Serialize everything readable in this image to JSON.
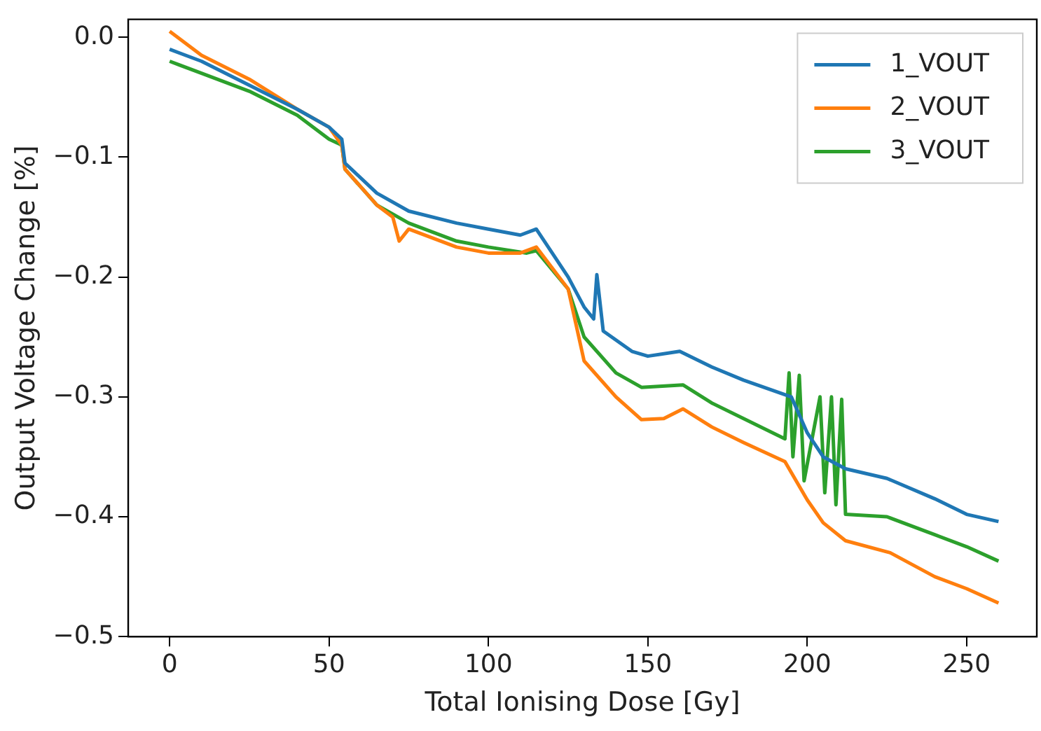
{
  "chart_data": {
    "type": "line",
    "xlabel": "Total Ionising Dose [Gy]",
    "ylabel": "Output Voltage Change [%]",
    "xlim": [
      -13,
      272
    ],
    "xticks": [
      0,
      50,
      100,
      150,
      200,
      250
    ],
    "ylim": [
      -0.5,
      0.015
    ],
    "yticks": [
      {
        "value": -0.5,
        "label": "−0.5"
      },
      {
        "value": -0.4,
        "label": "−0.4"
      },
      {
        "value": -0.3,
        "label": "−0.3"
      },
      {
        "value": -0.2,
        "label": "−0.2"
      },
      {
        "value": -0.1,
        "label": "−0.1"
      },
      {
        "value": 0,
        "label": "0.0"
      }
    ],
    "grid": false,
    "legend": "top right",
    "marker": "none",
    "line_style": "solid",
    "series": [
      {
        "name": "1_VOUT",
        "color": "#1f77b4",
        "x": [
          0,
          10,
          25,
          40,
          50,
          54,
          55,
          65,
          75,
          90,
          100,
          110,
          115,
          125,
          130,
          133,
          134,
          136,
          145,
          150,
          160,
          170,
          180,
          195,
          200,
          205,
          212,
          225,
          240,
          250,
          260
        ],
        "values": [
          -0.01,
          -0.02,
          -0.04,
          -0.06,
          -0.075,
          -0.085,
          -0.105,
          -0.13,
          -0.145,
          -0.155,
          -0.16,
          -0.165,
          -0.16,
          -0.2,
          -0.225,
          -0.235,
          -0.198,
          -0.245,
          -0.262,
          -0.266,
          -0.262,
          -0.275,
          -0.286,
          -0.3,
          -0.33,
          -0.35,
          -0.36,
          -0.368,
          -0.385,
          -0.398,
          -0.404
        ]
      },
      {
        "name": "2_VOUT",
        "color": "#ff7f0e",
        "x": [
          0,
          10,
          25,
          40,
          50,
          54,
          55,
          65,
          70,
          72,
          75,
          90,
          100,
          110,
          115,
          125,
          130,
          140,
          148,
          155,
          161,
          170,
          180,
          193,
          200,
          205,
          212,
          226,
          240,
          250,
          260
        ],
        "values": [
          0.005,
          -0.015,
          -0.035,
          -0.06,
          -0.075,
          -0.09,
          -0.11,
          -0.14,
          -0.15,
          -0.17,
          -0.16,
          -0.175,
          -0.18,
          -0.18,
          -0.175,
          -0.21,
          -0.27,
          -0.3,
          -0.319,
          -0.318,
          -0.31,
          -0.325,
          -0.338,
          -0.354,
          -0.386,
          -0.405,
          -0.42,
          -0.43,
          -0.45,
          -0.46,
          -0.472
        ]
      },
      {
        "name": "3_VOUT",
        "color": "#2ca02c",
        "x": [
          0,
          10,
          25,
          40,
          50,
          54,
          55,
          65,
          75,
          90,
          100,
          112,
          115,
          125,
          130,
          140,
          148,
          161,
          170,
          180,
          193,
          194.3,
          195.5,
          197.5,
          199,
          204,
          205.5,
          207.6,
          209,
          210.8,
          212,
          225,
          240,
          250,
          260
        ],
        "values": [
          -0.02,
          -0.03,
          -0.045,
          -0.065,
          -0.085,
          -0.09,
          -0.11,
          -0.14,
          -0.155,
          -0.17,
          -0.175,
          -0.18,
          -0.178,
          -0.21,
          -0.25,
          -0.28,
          -0.292,
          -0.29,
          -0.305,
          -0.318,
          -0.335,
          -0.28,
          -0.35,
          -0.282,
          -0.37,
          -0.3,
          -0.38,
          -0.3,
          -0.39,
          -0.302,
          -0.398,
          -0.4,
          -0.415,
          -0.425,
          -0.437
        ]
      }
    ]
  }
}
